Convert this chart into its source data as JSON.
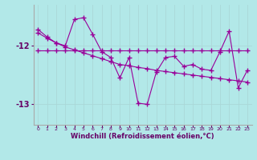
{
  "xlabel": "Windchill (Refroidissement éolien,°C)",
  "bg_color": "#b2e8e8",
  "grid_color": "#c8e8e8",
  "line_color": "#990099",
  "x": [
    0,
    1,
    2,
    3,
    4,
    5,
    6,
    7,
    8,
    9,
    10,
    11,
    12,
    13,
    14,
    15,
    16,
    17,
    18,
    19,
    20,
    21,
    22,
    23
  ],
  "line1": [
    -11.72,
    -11.85,
    -11.95,
    -12.0,
    -11.55,
    -11.52,
    -11.8,
    -12.1,
    -12.2,
    -12.55,
    -12.2,
    -12.98,
    -13.0,
    -12.45,
    -12.2,
    -12.18,
    -12.35,
    -12.32,
    -12.4,
    -12.42,
    -12.1,
    -11.75,
    -12.72,
    -12.42
  ],
  "line2": [
    -12.08,
    -12.08,
    -12.08,
    -12.08,
    -12.08,
    -12.08,
    -12.08,
    -12.08,
    -12.08,
    -12.08,
    -12.08,
    -12.08,
    -12.08,
    -12.08,
    -12.08,
    -12.08,
    -12.08,
    -12.08,
    -12.08,
    -12.08,
    -12.08,
    -12.08,
    -12.08,
    -12.08
  ],
  "line3": [
    -11.78,
    -11.87,
    -11.95,
    -12.02,
    -12.07,
    -12.12,
    -12.17,
    -12.22,
    -12.27,
    -12.32,
    -12.34,
    -12.37,
    -12.39,
    -12.42,
    -12.44,
    -12.46,
    -12.48,
    -12.5,
    -12.52,
    -12.54,
    -12.56,
    -12.58,
    -12.6,
    -12.62
  ],
  "xlim": [
    -0.5,
    23.5
  ],
  "ylim": [
    -13.35,
    -11.3
  ],
  "yticks": [
    -13,
    -12
  ],
  "xticks": [
    0,
    1,
    2,
    3,
    4,
    5,
    6,
    7,
    8,
    9,
    10,
    11,
    12,
    13,
    14,
    15,
    16,
    17,
    18,
    19,
    20,
    21,
    22,
    23
  ]
}
